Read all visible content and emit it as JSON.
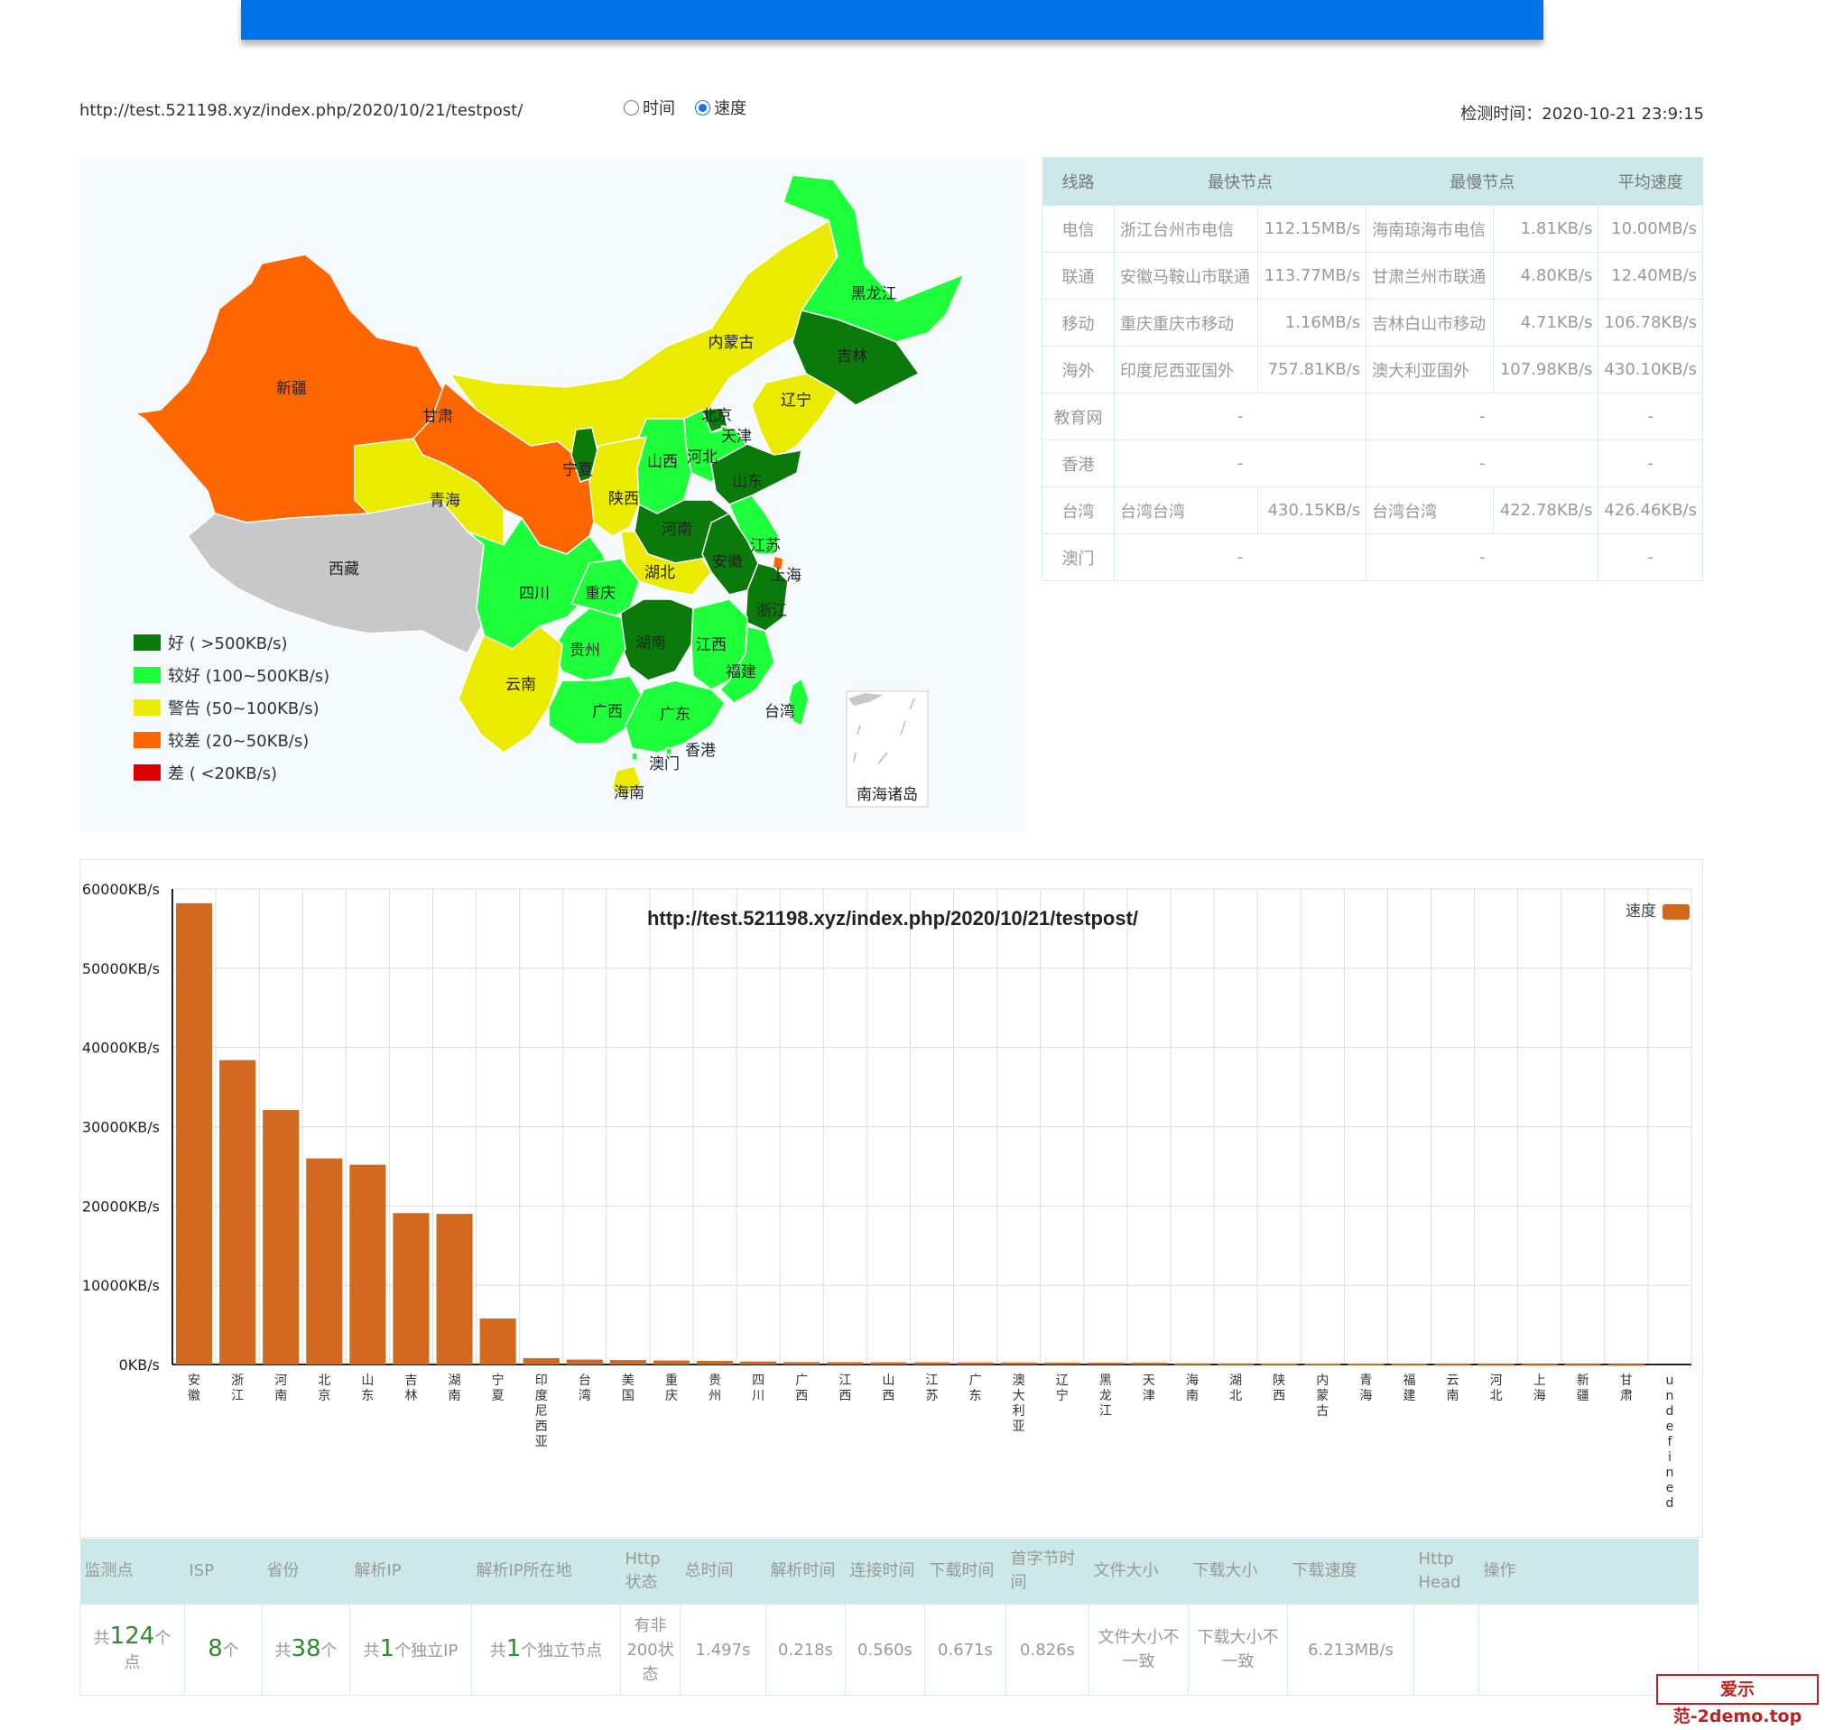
{
  "header": {
    "url": "http://test.521198.xyz/index.php/2020/10/21/testpost/",
    "radio_time": "时间",
    "radio_speed": "速度",
    "check_time": "检测时间：2020-10-21 23:9:15"
  },
  "map": {
    "provinces": {
      "xinjiang": "新疆",
      "xizang": "西藏",
      "qinghai": "青海",
      "gansu": "甘肃",
      "neimenggu": "内蒙古",
      "heilongjiang": "黑龙江",
      "jilin": "吉林",
      "liaoning": "辽宁",
      "beijing": "北京",
      "tianjin": "天津",
      "hebei": "河北",
      "shanxi": "山西",
      "ningxia": "宁夏",
      "shaanxi": "陕西",
      "shandong": "山东",
      "henan": "河南",
      "jiangsu": "江苏",
      "anhui": "安徽",
      "shanghai": "上海",
      "hubei": "湖北",
      "sichuan": "四川",
      "chongqing": "重庆",
      "zhejiang": "浙江",
      "hunan": "湖南",
      "jiangxi": "江西",
      "guizhou": "贵州",
      "fujian": "福建",
      "yunnan": "云南",
      "guangxi": "广西",
      "guangdong": "广东",
      "taiwan": "台湾",
      "xianggang": "香港",
      "aomen": "澳门",
      "hainan": "海南",
      "nanhai": "南海诸岛"
    },
    "legend": [
      {
        "label": "好 ( >500KB/s)",
        "color": "#0a7a0a"
      },
      {
        "label": "较好 (100~500KB/s)",
        "color": "#1eff3c"
      },
      {
        "label": "警告 (50~100KB/s)",
        "color": "#ebeb00"
      },
      {
        "label": "较差 (20~50KB/s)",
        "color": "#ff6600"
      },
      {
        "label": "差 ( <20KB/s)",
        "color": "#dd0000"
      }
    ]
  },
  "summary": {
    "headers": [
      "线路",
      "最快节点",
      "最慢节点",
      "平均速度"
    ],
    "rows": [
      {
        "line": "电信",
        "fast": "浙江台州市电信",
        "fast_v": "112.15MB/s",
        "slow": "海南琼海市电信",
        "slow_v": "1.81KB/s",
        "avg": "10.00MB/s"
      },
      {
        "line": "联通",
        "fast": "安徽马鞍山市联通",
        "fast_v": "113.77MB/s",
        "slow": "甘肃兰州市联通",
        "slow_v": "4.80KB/s",
        "avg": "12.40MB/s"
      },
      {
        "line": "移动",
        "fast": "重庆重庆市移动",
        "fast_v": "1.16MB/s",
        "slow": "吉林白山市移动",
        "slow_v": "4.71KB/s",
        "avg": "106.78KB/s"
      },
      {
        "line": "海外",
        "fast": "印度尼西亚国外",
        "fast_v": "757.81KB/s",
        "slow": "澳大利亚国外",
        "slow_v": "107.98KB/s",
        "avg": "430.10KB/s"
      },
      {
        "line": "教育网",
        "dash": "-"
      },
      {
        "line": "香港",
        "dash": "-"
      },
      {
        "line": "台湾",
        "fast": "台湾台湾",
        "fast_v": "430.15KB/s",
        "slow": "台湾台湾",
        "slow_v": "422.78KB/s",
        "avg": "426.46KB/s"
      },
      {
        "line": "澳门",
        "dash": "-"
      }
    ]
  },
  "chart_data": {
    "type": "bar",
    "title": "http://test.521198.xyz/index.php/2020/10/21/testpost/",
    "legend": "速度",
    "legend_position": "top-right",
    "bar_color": "#d2691e",
    "ylim": [
      0,
      60000
    ],
    "yticks": [
      "0KB/s",
      "10000KB/s",
      "20000KB/s",
      "30000KB/s",
      "40000KB/s",
      "50000KB/s",
      "60000KB/s"
    ],
    "grid": true,
    "categories": [
      "安徽",
      "浙江",
      "河南",
      "北京",
      "山东",
      "吉林",
      "湖南",
      "宁夏",
      "印度尼西亚",
      "台湾",
      "美国",
      "重庆",
      "贵州",
      "四川",
      "广西",
      "江西",
      "山西",
      "江苏",
      "广东",
      "澳大利亚",
      "辽宁",
      "黑龙江",
      "天津",
      "海南",
      "湖北",
      "陕西",
      "内蒙古",
      "青海",
      "福建",
      "云南",
      "河北",
      "上海",
      "新疆",
      "甘肃",
      "undefined"
    ],
    "values": [
      58200,
      38400,
      32100,
      26000,
      25200,
      19100,
      19000,
      5800,
      800,
      620,
      560,
      500,
      450,
      380,
      300,
      290,
      280,
      270,
      260,
      250,
      240,
      230,
      220,
      150,
      140,
      130,
      120,
      110,
      100,
      95,
      90,
      85,
      80,
      70,
      0
    ]
  },
  "detail": {
    "headers": [
      "监测点",
      "ISP",
      "省份",
      "解析IP",
      "解析IP所在地",
      "Http状态",
      "总时间",
      "解析时间",
      "连接时间",
      "下载时间",
      "首字节时间",
      "文件大小",
      "下载大小",
      "下载速度",
      "Http Head",
      "操作"
    ],
    "monitor_pre": "共",
    "monitor_num": "124",
    "monitor_post": "个点",
    "isp_num": "8",
    "isp_post": "个",
    "prov_pre": "共",
    "prov_num": "38",
    "prov_post": "个",
    "ip_pre": "共",
    "ip_num": "1",
    "ip_post": "个独立IP",
    "loc_pre": "共",
    "loc_num": "1",
    "loc_post": "个独立节点",
    "http_status": "有非200状态",
    "total_time": "1.497s",
    "dns_time": "0.218s",
    "conn_time": "0.560s",
    "down_time": "0.671s",
    "first_byte": "0.826s",
    "file_size": "文件大小不一致",
    "down_size": "下载大小不一致",
    "speed": "6.213MB/s"
  },
  "watermark": "爱示范-2demo.top"
}
